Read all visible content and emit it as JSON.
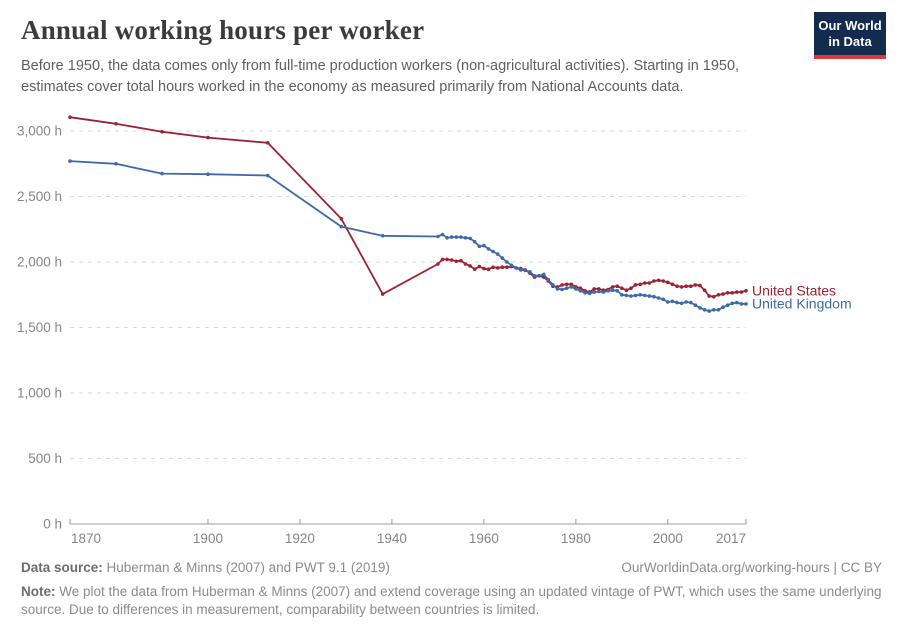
{
  "header": {
    "title": "Annual working hours per worker",
    "subtitle": "Before 1950, the data comes only from full-time production workers (non-agricultural activities). Starting in 1950, estimates cover total hours worked in the economy as measured primarily from National Accounts data.",
    "logo": {
      "line1": "Our World",
      "line2": "in Data",
      "bg_color": "#122B4E",
      "accent_color": "#E0373C"
    }
  },
  "chart_data": {
    "type": "line",
    "title": "Annual working hours per worker",
    "xlabel": "",
    "ylabel": "",
    "xlim": [
      1870,
      2017
    ],
    "ylim": [
      0,
      3160
    ],
    "grid": "horizontal-dashed",
    "legend_position": "line-end-labels",
    "x_ticks": [
      1870,
      1900,
      1920,
      1940,
      1960,
      1980,
      2000,
      2017
    ],
    "y_ticks": [
      {
        "value": 0,
        "label": "0 h"
      },
      {
        "value": 500,
        "label": "500 h"
      },
      {
        "value": 1000,
        "label": "1,000 h"
      },
      {
        "value": 1500,
        "label": "1,500 h"
      },
      {
        "value": 2000,
        "label": "2,000 h"
      },
      {
        "value": 2500,
        "label": "2,500 h"
      },
      {
        "value": 3000,
        "label": "3,000 h"
      }
    ],
    "series": [
      {
        "name": "United States",
        "color": "#9A2334",
        "x": [
          1870,
          1880,
          1890,
          1900,
          1913,
          1929,
          1938,
          1950,
          1951,
          1952,
          1953,
          1954,
          1955,
          1956,
          1957,
          1958,
          1959,
          1960,
          1961,
          1962,
          1963,
          1964,
          1965,
          1966,
          1967,
          1968,
          1969,
          1970,
          1971,
          1972,
          1973,
          1974,
          1975,
          1976,
          1977,
          1978,
          1979,
          1980,
          1981,
          1982,
          1983,
          1984,
          1985,
          1986,
          1987,
          1988,
          1989,
          1990,
          1991,
          1992,
          1993,
          1994,
          1995,
          1996,
          1997,
          1998,
          1999,
          2000,
          2001,
          2002,
          2003,
          2004,
          2005,
          2006,
          2007,
          2008,
          2009,
          2010,
          2011,
          2012,
          2013,
          2014,
          2015,
          2016,
          2017
        ],
        "values": [
          3105,
          3055,
          2995,
          2950,
          2910,
          2330,
          1755,
          1985,
          2020,
          2020,
          2015,
          2005,
          2010,
          1985,
          1970,
          1945,
          1965,
          1950,
          1945,
          1960,
          1955,
          1960,
          1960,
          1965,
          1955,
          1950,
          1940,
          1915,
          1885,
          1895,
          1885,
          1855,
          1815,
          1810,
          1825,
          1830,
          1830,
          1810,
          1800,
          1780,
          1770,
          1795,
          1795,
          1785,
          1790,
          1810,
          1815,
          1800,
          1785,
          1800,
          1825,
          1830,
          1840,
          1840,
          1855,
          1860,
          1855,
          1845,
          1830,
          1815,
          1810,
          1815,
          1815,
          1825,
          1820,
          1785,
          1740,
          1735,
          1750,
          1755,
          1765,
          1765,
          1770,
          1770,
          1780
        ]
      },
      {
        "name": "United Kingdom",
        "color": "#3E6AA8",
        "x": [
          1870,
          1880,
          1890,
          1900,
          1913,
          1929,
          1938,
          1950,
          1951,
          1952,
          1953,
          1954,
          1955,
          1956,
          1957,
          1958,
          1959,
          1960,
          1961,
          1962,
          1963,
          1964,
          1965,
          1966,
          1967,
          1968,
          1969,
          1970,
          1971,
          1972,
          1973,
          1974,
          1975,
          1976,
          1977,
          1978,
          1979,
          1980,
          1981,
          1982,
          1983,
          1984,
          1985,
          1986,
          1987,
          1988,
          1989,
          1990,
          1991,
          1992,
          1993,
          1994,
          1995,
          1996,
          1997,
          1998,
          1999,
          2000,
          2001,
          2002,
          2003,
          2004,
          2005,
          2006,
          2007,
          2008,
          2009,
          2010,
          2011,
          2012,
          2013,
          2014,
          2015,
          2016,
          2017
        ],
        "values": [
          2770,
          2750,
          2675,
          2670,
          2660,
          2270,
          2200,
          2195,
          2210,
          2185,
          2190,
          2190,
          2190,
          2185,
          2180,
          2155,
          2120,
          2125,
          2100,
          2080,
          2060,
          2030,
          2000,
          1975,
          1955,
          1940,
          1935,
          1925,
          1895,
          1895,
          1905,
          1865,
          1825,
          1795,
          1790,
          1800,
          1810,
          1795,
          1780,
          1765,
          1760,
          1770,
          1775,
          1770,
          1780,
          1785,
          1780,
          1750,
          1745,
          1740,
          1745,
          1750,
          1745,
          1740,
          1735,
          1725,
          1715,
          1695,
          1700,
          1690,
          1685,
          1695,
          1690,
          1670,
          1650,
          1635,
          1625,
          1635,
          1635,
          1655,
          1670,
          1685,
          1690,
          1680,
          1680
        ]
      }
    ]
  },
  "footer": {
    "data_source_label": "Data source:",
    "data_source_text": " Huberman & Minns (2007) and PWT 9.1 (2019)",
    "citation": "OurWorldinData.org/working-hours | CC BY",
    "note_label": "Note:",
    "note_text": " We plot the data from Huberman & Minns (2007) and extend coverage using an updated vintage of PWT, which uses the same underlying source. Due to differences in measurement, comparability between countries is limited."
  },
  "colors": {
    "grid": "#d9d9d9",
    "axis": "#9c9c9c",
    "tick_label": "#858585",
    "title_text": "#3b3b3b",
    "subtitle_text": "#5f5f5f",
    "footer_text": "#8b8b8b"
  }
}
